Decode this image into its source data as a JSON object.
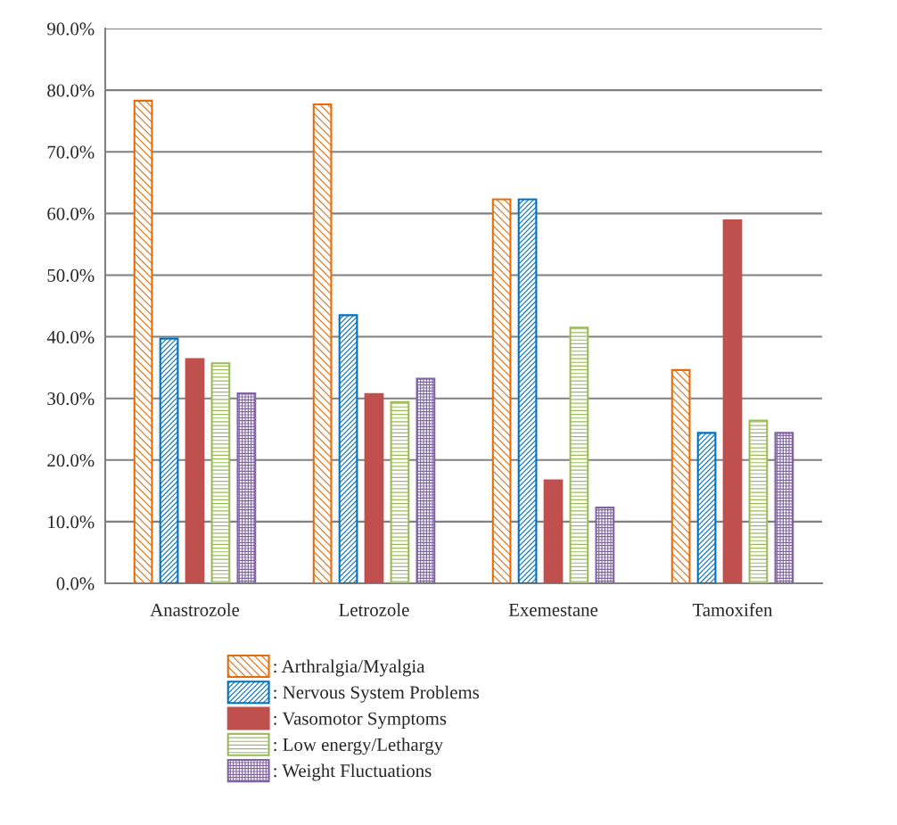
{
  "chart_data": {
    "type": "bar",
    "categories": [
      "Anastrozole",
      "Letrozole",
      "Exemestane",
      "Tamoxifen"
    ],
    "series": [
      {
        "name": ": Arthralgia/Myalgia",
        "color": "#e46c0a",
        "values": [
          78.3,
          77.7,
          62.3,
          34.6
        ]
      },
      {
        "name": ": Nervous System Problems",
        "color": "#0070c0",
        "values": [
          39.7,
          43.5,
          62.3,
          24.4
        ]
      },
      {
        "name": ": Vasomotor Symptoms",
        "color": "#c0504d",
        "values": [
          36.4,
          30.7,
          16.7,
          58.9
        ]
      },
      {
        "name": ": Low energy/Lethargy",
        "color": "#9bbb59",
        "values": [
          35.7,
          29.4,
          41.5,
          26.4
        ]
      },
      {
        "name": ": Weight Fluctuations",
        "color": "#8064a2",
        "values": [
          30.8,
          33.2,
          12.3,
          24.4
        ]
      }
    ],
    "ylim": [
      0,
      90
    ],
    "yticks": [
      {
        "value": 0,
        "label": "0.0%"
      },
      {
        "value": 10,
        "label": "10.0%"
      },
      {
        "value": 20,
        "label": "20.0%"
      },
      {
        "value": 30,
        "label": "30.0%"
      },
      {
        "value": 40,
        "label": "40.0%"
      },
      {
        "value": 50,
        "label": "50.0%"
      },
      {
        "value": 60,
        "label": "60.0%"
      },
      {
        "value": 70,
        "label": "70.0%"
      },
      {
        "value": 80,
        "label": "80.0%"
      },
      {
        "value": 90,
        "label": "90.0%"
      }
    ],
    "grid": "y",
    "legend": "bottom"
  }
}
